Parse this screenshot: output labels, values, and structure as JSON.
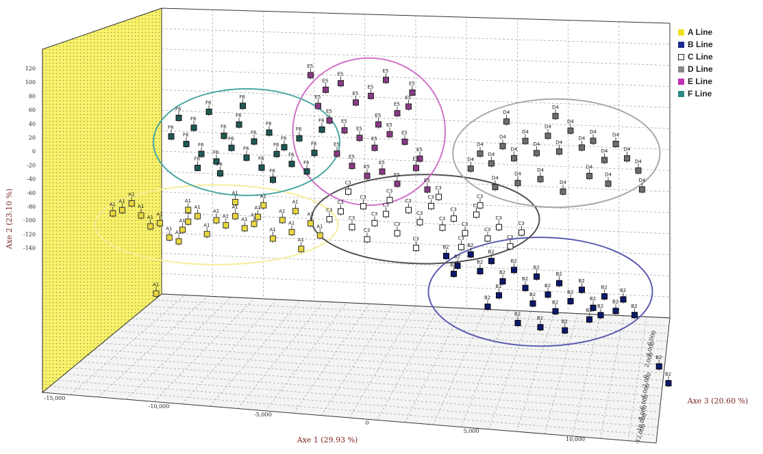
{
  "chart_data": {
    "type": "scatter",
    "xlabel": "Axe 1 (29.93 %)",
    "ylabel": "Axe 2 (23.10 %)",
    "zlabel": "Axe 3 (20.60 %)",
    "x_ticks": [
      "-15,000",
      "-10,000",
      "-5,000",
      "0",
      "5,000",
      "10,000"
    ],
    "y_ticks": [
      "120",
      "100",
      "80",
      "60",
      "40",
      "20",
      "0",
      "-20",
      "-40",
      "-60",
      "-80",
      "-100",
      "-120",
      "-140"
    ],
    "z_ticks": [
      "6,000",
      "4,000",
      "2,000",
      "0",
      "-2,000",
      "-4,000",
      "-6,000",
      "-8,000",
      "-10,000",
      "-12,000"
    ],
    "grid": true,
    "legend_position": "top-right",
    "series": [
      {
        "name": "A Line",
        "label": "A1",
        "color": "#f0e020",
        "marker_fill": "#e8d840",
        "marker_stroke": "#333333",
        "ellipse_color": "#f5ee9a",
        "points": [
          [
            -13.5,
            -3
          ],
          [
            -13,
            0
          ],
          [
            -12.5,
            6
          ],
          [
            -12,
            -4
          ],
          [
            -11.5,
            -13
          ],
          [
            -11,
            -10
          ],
          [
            -10.5,
            -22
          ],
          [
            -10,
            -25
          ],
          [
            -9.8,
            -15
          ],
          [
            -9.5,
            -8
          ],
          [
            -9,
            -3
          ],
          [
            -8.5,
            -18
          ],
          [
            -8,
            -6
          ],
          [
            -7.5,
            -10
          ],
          [
            -7,
            -2
          ],
          [
            -6.5,
            -12
          ],
          [
            -6,
            -8
          ],
          [
            -5.5,
            8
          ],
          [
            -5,
            -20
          ],
          [
            -4.5,
            -4
          ],
          [
            -4,
            -14
          ],
          [
            -3.5,
            -28
          ],
          [
            -3,
            -6
          ],
          [
            -2.5,
            -16
          ],
          [
            -9.5,
            2
          ],
          [
            -7,
            10
          ],
          [
            -5.8,
            -2
          ],
          [
            -3.8,
            4
          ],
          [
            -11.2,
            -70
          ]
        ]
      },
      {
        "name": "B Line",
        "label": "B2",
        "color": "#1a2a8c",
        "marker_fill": "#0c1a6e",
        "marker_stroke": "#000000",
        "ellipse_color": "#5a5ab0",
        "points": [
          [
            4.2,
            -30
          ],
          [
            4.8,
            -38
          ],
          [
            5.5,
            -28
          ],
          [
            6,
            -42
          ],
          [
            6.6,
            -33
          ],
          [
            7.2,
            -50
          ],
          [
            7.8,
            -40
          ],
          [
            8.4,
            -55
          ],
          [
            9,
            -45
          ],
          [
            9.6,
            -60
          ],
          [
            10.2,
            -50
          ],
          [
            10.8,
            -65
          ],
          [
            11.4,
            -55
          ],
          [
            12,
            -70
          ],
          [
            12.6,
            -60
          ],
          [
            13.2,
            -72
          ],
          [
            13.6,
            -62
          ],
          [
            6.4,
            -72
          ],
          [
            8,
            -85
          ],
          [
            9.2,
            -88
          ],
          [
            10.5,
            -90
          ],
          [
            11.8,
            -80
          ],
          [
            14.2,
            -75
          ],
          [
            15.5,
            -118
          ],
          [
            16,
            -132
          ],
          [
            7,
            -62
          ],
          [
            8.8,
            -68
          ],
          [
            10,
            -74
          ],
          [
            12.4,
            -76
          ],
          [
            4.6,
            -45
          ]
        ]
      },
      {
        "name": "C Line",
        "label": "C3",
        "color": "#ffffff",
        "marker_fill": "#ffffff",
        "marker_stroke": "#111111",
        "ellipse_color": "#505050",
        "points": [
          [
            -2,
            -2
          ],
          [
            -1.4,
            5
          ],
          [
            -0.8,
            -8
          ],
          [
            -0.2,
            10
          ],
          [
            0.4,
            -4
          ],
          [
            1,
            4
          ],
          [
            1.6,
            -12
          ],
          [
            2.2,
            8
          ],
          [
            2.8,
            -2
          ],
          [
            3.4,
            12
          ],
          [
            4,
            -6
          ],
          [
            4.6,
            2
          ],
          [
            5.2,
            -10
          ],
          [
            5.8,
            6
          ],
          [
            6.4,
            -14
          ],
          [
            7,
            -4
          ],
          [
            7.6,
            -20
          ],
          [
            8.2,
            -8
          ],
          [
            0,
            -18
          ],
          [
            2.6,
            -24
          ],
          [
            5,
            -22
          ],
          [
            1.2,
            16
          ],
          [
            3.8,
            20
          ],
          [
            6,
            14
          ],
          [
            -1,
            22
          ]
        ]
      },
      {
        "name": "D Line",
        "label": "D4",
        "color": "#888888",
        "marker_fill": "#6e6e6e",
        "marker_stroke": "#222222",
        "ellipse_color": "#a8a8a8",
        "points": [
          [
            5.5,
            45
          ],
          [
            6,
            58
          ],
          [
            6.6,
            50
          ],
          [
            7.2,
            65
          ],
          [
            7.8,
            55
          ],
          [
            8.4,
            70
          ],
          [
            9,
            60
          ],
          [
            9.6,
            75
          ],
          [
            10.2,
            62
          ],
          [
            10.8,
            80
          ],
          [
            11.4,
            66
          ],
          [
            12,
            72
          ],
          [
            12.6,
            56
          ],
          [
            13.2,
            70
          ],
          [
            13.8,
            58
          ],
          [
            14.4,
            48
          ],
          [
            9.2,
            38
          ],
          [
            10.4,
            28
          ],
          [
            11.8,
            42
          ],
          [
            8,
            34
          ],
          [
            6.8,
            30
          ],
          [
            12.8,
            36
          ],
          [
            14.6,
            32
          ],
          [
            7.4,
            86
          ],
          [
            10,
            92
          ]
        ]
      },
      {
        "name": "E Line",
        "label": "E5",
        "color": "#c030b0",
        "marker_fill": "#8a3a86",
        "marker_stroke": "#222222",
        "ellipse_color": "#d070c8",
        "points": [
          [
            -3,
            120
          ],
          [
            -2.2,
            108
          ],
          [
            -1.4,
            114
          ],
          [
            -0.6,
            98
          ],
          [
            0.2,
            104
          ],
          [
            1,
            118
          ],
          [
            1.6,
            90
          ],
          [
            2.2,
            96
          ],
          [
            -2,
            82
          ],
          [
            -1.2,
            74
          ],
          [
            -0.4,
            68
          ],
          [
            0.4,
            60
          ],
          [
            1.2,
            72
          ],
          [
            2,
            66
          ],
          [
            2.8,
            52
          ],
          [
            -1.6,
            54
          ],
          [
            -0.8,
            44
          ],
          [
            0,
            36
          ],
          [
            0.8,
            40
          ],
          [
            1.6,
            30
          ],
          [
            2.6,
            44
          ],
          [
            3.2,
            26
          ],
          [
            -2.6,
            94
          ],
          [
            0.6,
            80
          ],
          [
            2.4,
            108
          ]
        ]
      },
      {
        "name": "F Line",
        "label": "F6",
        "color": "#2a8a84",
        "marker_fill": "#1f5a56",
        "marker_stroke": "#111111",
        "ellipse_color": "#4aa6a4",
        "points": [
          [
            -10,
            80
          ],
          [
            -9.2,
            72
          ],
          [
            -8.4,
            86
          ],
          [
            -7.6,
            66
          ],
          [
            -6.8,
            76
          ],
          [
            -6,
            62
          ],
          [
            -5.2,
            70
          ],
          [
            -4.4,
            58
          ],
          [
            -3.6,
            66
          ],
          [
            -2.8,
            54
          ],
          [
            -9.6,
            58
          ],
          [
            -8.8,
            50
          ],
          [
            -8,
            44
          ],
          [
            -7.2,
            56
          ],
          [
            -6.4,
            48
          ],
          [
            -5.6,
            40
          ],
          [
            -4.8,
            52
          ],
          [
            -4,
            44
          ],
          [
            -3.2,
            38
          ],
          [
            -10.4,
            64
          ],
          [
            -6.6,
            92
          ],
          [
            -7.8,
            34
          ],
          [
            -9,
            38
          ],
          [
            -5,
            30
          ],
          [
            -2.4,
            74
          ]
        ]
      }
    ]
  }
}
